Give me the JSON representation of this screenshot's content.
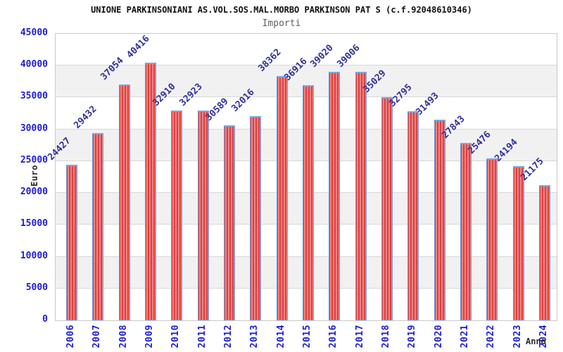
{
  "chart_data": {
    "type": "bar",
    "title": "UNIONE PARKINSONIANI AS.VOL.SOS.MAL.MORBO PARKINSON PAT S (c.f.92048610346)",
    "subtitle": "Importi",
    "xlabel": "Anno",
    "ylabel": "Euro",
    "categories": [
      "2006",
      "2007",
      "2008",
      "2009",
      "2010",
      "2011",
      "2012",
      "2013",
      "2014",
      "2015",
      "2016",
      "2017",
      "2018",
      "2019",
      "2020",
      "2021",
      "2022",
      "2023",
      "2024"
    ],
    "values": [
      24427,
      29432,
      37054,
      40416,
      32910,
      32923,
      30589,
      32016,
      38362,
      36916,
      39020,
      39006,
      35029,
      32795,
      31493,
      27843,
      25476,
      24194,
      21175
    ],
    "ylim": [
      0,
      45000
    ],
    "ytick_step": 5000,
    "ytick_labels": [
      "0",
      "5000",
      "10000",
      "15000",
      "20000",
      "25000",
      "30000",
      "35000",
      "40000",
      "45000"
    ],
    "legend": "none",
    "grid": "horizontal-bands-alternating",
    "colors": {
      "bar_fill_dark": "#d51f1f",
      "bar_fill_light": "#f3a6a6",
      "bar_border": "#6e9edc",
      "tick_label": "#1e1ed2",
      "value_label": "#30309c",
      "title": "#111111",
      "subtitle": "#5f5f5f",
      "axis_title": "#2b2b2b",
      "band_gray": "#f1f1f2",
      "gridline": "#d8d8d8",
      "plot_border": "#c9c9c9",
      "background": "#ffffff"
    }
  }
}
